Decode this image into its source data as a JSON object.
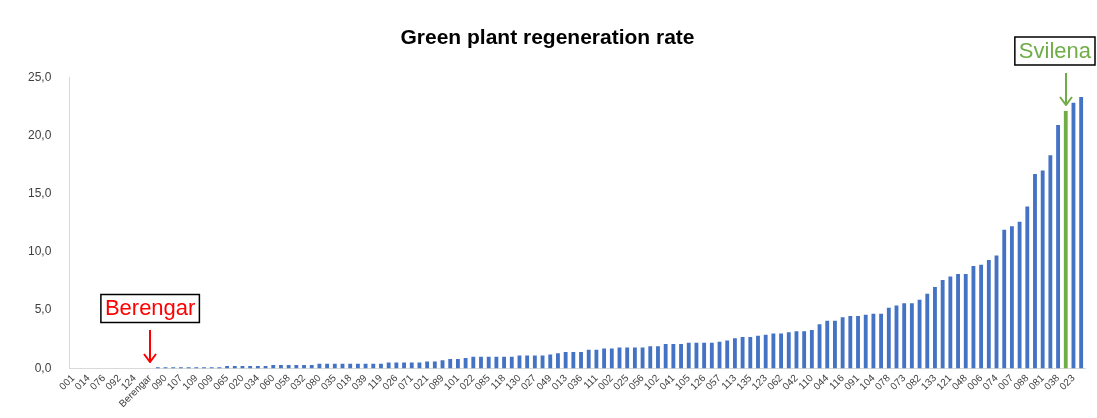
{
  "chart_data": {
    "type": "bar",
    "title": "Green plant regeneration rate",
    "categories": [
      "001",
      null,
      "014",
      null,
      "076",
      null,
      "092",
      null,
      "124",
      null,
      "Berengar",
      null,
      "090",
      null,
      "107",
      null,
      "109",
      null,
      "009",
      null,
      "065",
      null,
      "020",
      null,
      "034",
      null,
      "060",
      null,
      "058",
      null,
      "032",
      null,
      "080",
      null,
      "035",
      null,
      "018",
      null,
      "039",
      null,
      "119",
      null,
      "026",
      null,
      "071",
      null,
      "021",
      null,
      "089",
      null,
      "101",
      null,
      "022",
      null,
      "085",
      null,
      "118",
      null,
      "130",
      null,
      "027",
      null,
      "049",
      null,
      "013",
      null,
      "036",
      null,
      "111",
      null,
      "002",
      null,
      "025",
      null,
      "056",
      null,
      "102",
      null,
      "041",
      null,
      "105",
      null,
      "126",
      null,
      "057",
      null,
      "113",
      null,
      "135",
      null,
      "123",
      null,
      "062",
      null,
      "042",
      null,
      "110",
      null,
      "044",
      null,
      "116",
      null,
      "091",
      null,
      "104",
      null,
      "078",
      null,
      "073",
      null,
      "082",
      null,
      "133",
      null,
      "121",
      null,
      "048",
      null,
      "006",
      null,
      "074",
      null,
      "007",
      null,
      "088",
      null,
      "081",
      null,
      "038",
      null,
      "023",
      null
    ],
    "values": [
      0,
      0,
      0,
      0,
      0,
      0,
      0,
      0,
      0,
      0,
      0,
      0.1,
      0.1,
      0.1,
      0.1,
      0.1,
      0.1,
      0.1,
      0.1,
      0.1,
      0.2,
      0.2,
      0.2,
      0.2,
      0.2,
      0.2,
      0.3,
      0.3,
      0.3,
      0.3,
      0.3,
      0.3,
      0.4,
      0.4,
      0.4,
      0.4,
      0.4,
      0.4,
      0.4,
      0.4,
      0.4,
      0.5,
      0.5,
      0.5,
      0.5,
      0.5,
      0.6,
      0.6,
      0.7,
      0.8,
      0.8,
      0.9,
      1.0,
      1.0,
      1.0,
      1.0,
      1.0,
      1.0,
      1.1,
      1.1,
      1.1,
      1.1,
      1.2,
      1.3,
      1.4,
      1.4,
      1.4,
      1.6,
      1.6,
      1.7,
      1.7,
      1.8,
      1.8,
      1.8,
      1.8,
      1.9,
      1.9,
      2.1,
      2.1,
      2.1,
      2.2,
      2.2,
      2.2,
      2.2,
      2.3,
      2.4,
      2.6,
      2.7,
      2.7,
      2.8,
      2.9,
      3.0,
      3.0,
      3.1,
      3.2,
      3.2,
      3.3,
      3.8,
      4.1,
      4.1,
      4.4,
      4.5,
      4.5,
      4.6,
      4.7,
      4.7,
      5.2,
      5.4,
      5.6,
      5.6,
      5.9,
      6.4,
      7.0,
      7.6,
      7.9,
      8.1,
      8.1,
      8.8,
      8.9,
      9.3,
      9.7,
      11.9,
      12.2,
      12.6,
      13.9,
      16.7,
      17.0,
      18.3,
      20.9,
      22.1,
      22.8,
      23.3
    ],
    "colors": [
      "#4472c4",
      "#4472c4",
      "#4472c4",
      "#4472c4",
      "#4472c4",
      "#4472c4",
      "#4472c4",
      "#4472c4",
      "#4472c4",
      "#4472c4",
      "#4472c4",
      "#4472c4",
      "#4472c4",
      "#4472c4",
      "#4472c4",
      "#4472c4",
      "#4472c4",
      "#4472c4",
      "#4472c4",
      "#4472c4",
      "#4472c4",
      "#4472c4",
      "#4472c4",
      "#4472c4",
      "#4472c4",
      "#4472c4",
      "#4472c4",
      "#4472c4",
      "#4472c4",
      "#4472c4",
      "#4472c4",
      "#4472c4",
      "#4472c4",
      "#4472c4",
      "#4472c4",
      "#4472c4",
      "#4472c4",
      "#4472c4",
      "#4472c4",
      "#4472c4",
      "#4472c4",
      "#4472c4",
      "#4472c4",
      "#4472c4",
      "#4472c4",
      "#4472c4",
      "#4472c4",
      "#4472c4",
      "#4472c4",
      "#4472c4",
      "#4472c4",
      "#4472c4",
      "#4472c4",
      "#4472c4",
      "#4472c4",
      "#4472c4",
      "#4472c4",
      "#4472c4",
      "#4472c4",
      "#4472c4",
      "#4472c4",
      "#4472c4",
      "#4472c4",
      "#4472c4",
      "#4472c4",
      "#4472c4",
      "#4472c4",
      "#4472c4",
      "#4472c4",
      "#4472c4",
      "#4472c4",
      "#4472c4",
      "#4472c4",
      "#4472c4",
      "#4472c4",
      "#4472c4",
      "#4472c4",
      "#4472c4",
      "#4472c4",
      "#4472c4",
      "#4472c4",
      "#4472c4",
      "#4472c4",
      "#4472c4",
      "#4472c4",
      "#4472c4",
      "#4472c4",
      "#4472c4",
      "#4472c4",
      "#4472c4",
      "#4472c4",
      "#4472c4",
      "#4472c4",
      "#4472c4",
      "#4472c4",
      "#4472c4",
      "#4472c4",
      "#4472c4",
      "#4472c4",
      "#4472c4",
      "#4472c4",
      "#4472c4",
      "#4472c4",
      "#4472c4",
      "#4472c4",
      "#4472c4",
      "#4472c4",
      "#4472c4",
      "#4472c4",
      "#4472c4",
      "#4472c4",
      "#4472c4",
      "#4472c4",
      "#4472c4",
      "#4472c4",
      "#4472c4",
      "#4472c4",
      "#4472c4",
      "#4472c4",
      "#4472c4",
      "#4472c4",
      "#4472c4",
      "#4472c4",
      "#4472c4",
      "#4472c4",
      "#4472c4",
      "#4472c4",
      "#4472c4",
      "#4472c4",
      "#70ad47",
      "#4472c4",
      "#4472c4"
    ],
    "ylim": [
      0,
      25
    ],
    "yticks": [
      {
        "value": 0,
        "label": "0,0"
      },
      {
        "value": 5,
        "label": "5,0"
      },
      {
        "value": 10,
        "label": "10,0"
      },
      {
        "value": 15,
        "label": "15,0"
      },
      {
        "value": 20,
        "label": "20,0"
      },
      {
        "value": 25,
        "label": "25,0"
      }
    ],
    "annotations": [
      {
        "text": "Berengar",
        "x": "Berengar"
      },
      "Svilena"
    ],
    "grid": false,
    "legend": false
  }
}
